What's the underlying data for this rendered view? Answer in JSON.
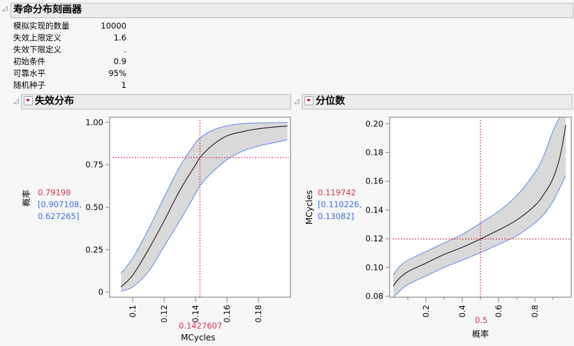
{
  "report": {
    "title": "寿命分布刻画器",
    "params": [
      {
        "label": "模拟实现的数量",
        "value": "10000"
      },
      {
        "label": "失效上限定义",
        "value": "1.6"
      },
      {
        "label": "失效下限定义",
        "value": "."
      },
      {
        "label": "初始条件",
        "value": "0.9"
      },
      {
        "label": "可靠水平",
        "value": "95%"
      },
      {
        "label": "随机种子",
        "value": "1"
      }
    ]
  },
  "panels": {
    "failure": {
      "title": "失效分布",
      "ylabel": "概率",
      "xlabel": "MCycles",
      "current_y": "0.79198",
      "ci_line1": "[0.907108,",
      "ci_line2": "0.627265]",
      "current_x": "0.1427607"
    },
    "quantile": {
      "title": "分位数",
      "ylabel": "MCycles",
      "xlabel": "概率",
      "current_y": "0.119742",
      "ci_line1": "[0.110226,",
      "ci_line2": "0.13082]",
      "current_x": "0.5"
    }
  },
  "colors": {
    "curve": "#1a1a1a",
    "band_fill": "#d9d9d9",
    "band_edge": "#5b87e6",
    "crosshair": "#d9203a",
    "current_value": "#e0304a",
    "ci_text": "#3a6ee8"
  },
  "chart_data": [
    {
      "type": "line",
      "title": "失效分布",
      "xlabel": "MCycles",
      "ylabel": "概率",
      "xlim": [
        0.0853,
        0.2004
      ],
      "ylim": [
        -0.03,
        1.03
      ],
      "xticks": [
        "0.1",
        "0.12",
        "0.14",
        "0.16",
        "0.18"
      ],
      "yticks": [
        "0",
        "0.25",
        "0.50",
        "0.75",
        "1.00"
      ],
      "x": [
        0.0925,
        0.1,
        0.11,
        0.12,
        0.13,
        0.14,
        0.1428,
        0.15,
        0.16,
        0.17,
        0.18,
        0.19,
        0.1985
      ],
      "series": [
        {
          "name": "estimate",
          "values": [
            0.03,
            0.1,
            0.25,
            0.42,
            0.6,
            0.75,
            0.79198,
            0.86,
            0.92,
            0.945,
            0.962,
            0.972,
            0.978
          ]
        },
        {
          "name": "upper",
          "values": [
            0.11,
            0.2,
            0.37,
            0.56,
            0.74,
            0.88,
            0.907108,
            0.95,
            0.98,
            0.992,
            0.996,
            0.998,
            0.999
          ]
        },
        {
          "name": "lower",
          "values": [
            0.005,
            0.03,
            0.12,
            0.27,
            0.42,
            0.58,
            0.627265,
            0.7,
            0.78,
            0.83,
            0.86,
            0.88,
            0.897
          ]
        }
      ],
      "crosshair": {
        "x": 0.1427607,
        "y": 0.79198
      }
    },
    {
      "type": "line",
      "title": "分位数",
      "xlabel": "概率",
      "ylabel": "MCycles",
      "xlim": [
        0,
        1.0
      ],
      "ylim": [
        0.0793,
        0.2045
      ],
      "xticks": [
        "0.2",
        "0.4",
        "0.6",
        "0.8"
      ],
      "yticks": [
        "0.08",
        "0.10",
        "0.12",
        "0.14",
        "0.16",
        "0.18",
        "0.20"
      ],
      "x": [
        0.02,
        0.05,
        0.1,
        0.2,
        0.3,
        0.4,
        0.5,
        0.6,
        0.7,
        0.8,
        0.85,
        0.9,
        0.94,
        0.97
      ],
      "series": [
        {
          "name": "estimate",
          "values": [
            0.087,
            0.092,
            0.097,
            0.103,
            0.109,
            0.114,
            0.119742,
            0.126,
            0.133,
            0.143,
            0.151,
            0.162,
            0.178,
            0.199
          ]
        },
        {
          "name": "upper",
          "values": [
            0.095,
            0.1,
            0.105,
            0.111,
            0.117,
            0.123,
            0.13082,
            0.139,
            0.15,
            0.166,
            0.178,
            0.195,
            0.205,
            0.205
          ]
        },
        {
          "name": "lower",
          "values": [
            0.079,
            0.083,
            0.088,
            0.094,
            0.1,
            0.105,
            0.110226,
            0.116,
            0.122,
            0.131,
            0.137,
            0.146,
            0.156,
            0.164
          ]
        }
      ],
      "crosshair": {
        "x": 0.5,
        "y": 0.119742
      }
    }
  ]
}
